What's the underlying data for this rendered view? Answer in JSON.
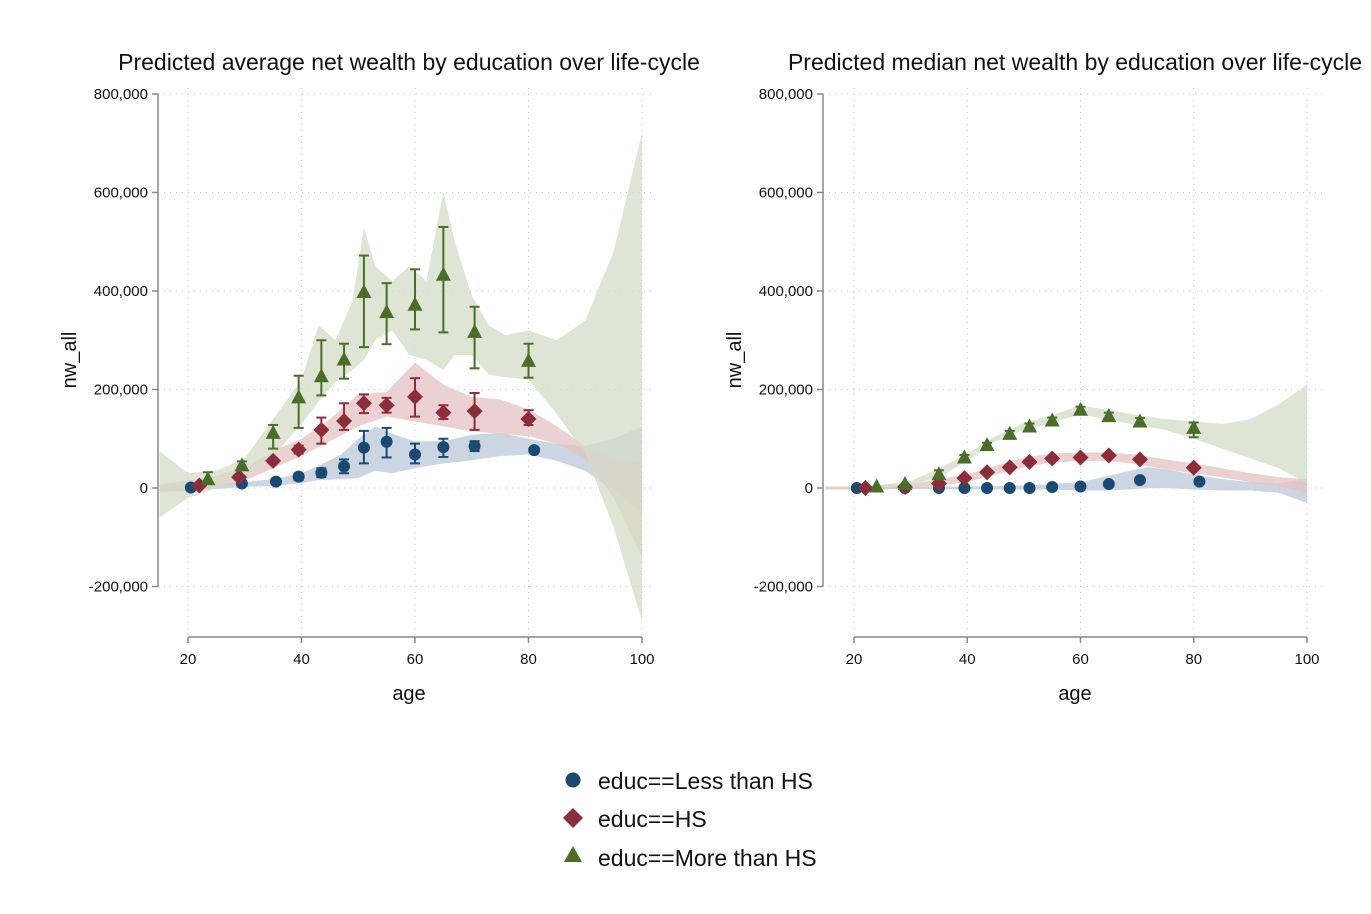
{
  "chart_data": [
    {
      "type": "scatter",
      "title": "Predicted average net wealth by education over life-cycle",
      "xlabel": "age",
      "ylabel": "nw_all",
      "xlim": [
        15,
        100
      ],
      "ylim": [
        -310000,
        800000
      ],
      "xticks": [
        20,
        40,
        60,
        80,
        100
      ],
      "xtick_labels": [
        "20",
        "40",
        "60",
        "80",
        "100"
      ],
      "yticks": [
        -200000,
        0,
        200000,
        400000,
        600000,
        800000
      ],
      "ytick_labels": [
        "-200,000",
        "0",
        "200,000",
        "400,000",
        "600,000",
        "800,000"
      ],
      "grid": true,
      "series": [
        {
          "name": "educ==Less than HS",
          "marker": "circle",
          "color": "#1a4a72",
          "band_color": "#b9c8d8",
          "points": [
            {
              "x": 20.5,
              "y": 1000,
              "lo": 1000,
              "hi": 1000
            },
            {
              "x": 29.5,
              "y": 9000,
              "lo": 9000,
              "hi": 9000
            },
            {
              "x": 35.5,
              "y": 13000,
              "lo": 13000,
              "hi": 13000
            },
            {
              "x": 39.5,
              "y": 23000,
              "lo": 16000,
              "hi": 29000
            },
            {
              "x": 43.5,
              "y": 31000,
              "lo": 22000,
              "hi": 40000
            },
            {
              "x": 47.5,
              "y": 44000,
              "lo": 30000,
              "hi": 58000
            },
            {
              "x": 51,
              "y": 82000,
              "lo": 50000,
              "hi": 116000
            },
            {
              "x": 55,
              "y": 94000,
              "lo": 62000,
              "hi": 122000
            },
            {
              "x": 60,
              "y": 68000,
              "lo": 50000,
              "hi": 90000
            },
            {
              "x": 65,
              "y": 83000,
              "lo": 63000,
              "hi": 100000
            },
            {
              "x": 70.5,
              "y": 85000,
              "lo": 75000,
              "hi": 95000
            },
            {
              "x": 81,
              "y": 77000,
              "lo": 72000,
              "hi": 82000
            }
          ],
          "band_x": [
            15,
            20,
            25,
            30,
            35,
            40,
            43,
            47,
            50,
            53,
            56,
            60,
            65,
            70,
            75,
            80,
            85,
            90,
            95,
            100
          ],
          "band_lo": [
            -9000,
            -5000,
            -2000,
            2000,
            4000,
            10000,
            16000,
            18000,
            20000,
            35000,
            30000,
            40000,
            50000,
            56000,
            65000,
            68000,
            55000,
            35000,
            -5000,
            -50000
          ],
          "band_hi": [
            6000,
            8000,
            8000,
            12000,
            18000,
            30000,
            45000,
            68000,
            100000,
            125000,
            110000,
            95000,
            95000,
            108000,
            112000,
            100000,
            90000,
            85000,
            100000,
            125000
          ]
        },
        {
          "name": "educ==HS",
          "marker": "diamond",
          "color": "#8b2d3a",
          "band_color": "#e5c1c4",
          "points": [
            {
              "x": 22,
              "y": 5000,
              "lo": 5000,
              "hi": 5000
            },
            {
              "x": 29,
              "y": 22000,
              "lo": 18000,
              "hi": 26000
            },
            {
              "x": 35,
              "y": 55000,
              "lo": 50000,
              "hi": 60000
            },
            {
              "x": 39.5,
              "y": 78000,
              "lo": 70000,
              "hi": 86000
            },
            {
              "x": 43.5,
              "y": 118000,
              "lo": 90000,
              "hi": 143000
            },
            {
              "x": 47.5,
              "y": 136000,
              "lo": 118000,
              "hi": 172000
            },
            {
              "x": 51,
              "y": 172000,
              "lo": 152000,
              "hi": 190000
            },
            {
              "x": 55,
              "y": 168000,
              "lo": 153000,
              "hi": 183000
            },
            {
              "x": 60,
              "y": 185000,
              "lo": 145000,
              "hi": 223000
            },
            {
              "x": 65,
              "y": 153000,
              "lo": 140000,
              "hi": 168000
            },
            {
              "x": 70.5,
              "y": 156000,
              "lo": 118000,
              "hi": 193000
            },
            {
              "x": 80,
              "y": 140000,
              "lo": 128000,
              "hi": 158000
            }
          ],
          "band_x": [
            15,
            20,
            25,
            30,
            35,
            40,
            45,
            50,
            55,
            60,
            65,
            70,
            75,
            80,
            85,
            90,
            95,
            100
          ],
          "band_lo": [
            -5000,
            -5000,
            0,
            15000,
            40000,
            65000,
            95000,
            125000,
            145000,
            135000,
            125000,
            115000,
            110000,
            105000,
            90000,
            60000,
            -20000,
            -140000
          ],
          "band_hi": [
            8000,
            15000,
            25000,
            40000,
            75000,
            100000,
            140000,
            190000,
            195000,
            255000,
            210000,
            185000,
            180000,
            160000,
            125000,
            85000,
            60000,
            50000
          ]
        },
        {
          "name": "educ==More than HS",
          "marker": "triangle",
          "color": "#4a6e2a",
          "band_color": "#d3dcc7",
          "points": [
            {
              "x": 23.5,
              "y": 18000,
              "lo": 8000,
              "hi": 32000
            },
            {
              "x": 29.5,
              "y": 46000,
              "lo": 38000,
              "hi": 54000
            },
            {
              "x": 35,
              "y": 112000,
              "lo": 80000,
              "hi": 128000
            },
            {
              "x": 39.5,
              "y": 184000,
              "lo": 122000,
              "hi": 228000
            },
            {
              "x": 43.5,
              "y": 227000,
              "lo": 188000,
              "hi": 300000
            },
            {
              "x": 47.5,
              "y": 261000,
              "lo": 222000,
              "hi": 293000
            },
            {
              "x": 51,
              "y": 398000,
              "lo": 286000,
              "hi": 472000
            },
            {
              "x": 55,
              "y": 357000,
              "lo": 292000,
              "hi": 416000
            },
            {
              "x": 60,
              "y": 372000,
              "lo": 322000,
              "hi": 444000
            },
            {
              "x": 65,
              "y": 433000,
              "lo": 316000,
              "hi": 530000
            },
            {
              "x": 70.5,
              "y": 317000,
              "lo": 243000,
              "hi": 368000
            },
            {
              "x": 80,
              "y": 258000,
              "lo": 224000,
              "hi": 293000
            }
          ],
          "band_x": [
            15,
            20,
            25,
            30,
            35,
            40,
            43,
            46,
            49,
            51,
            53,
            56,
            59,
            62,
            65,
            67,
            70,
            73,
            76,
            80,
            85,
            90,
            95,
            100
          ],
          "band_lo": [
            -60000,
            -20000,
            0,
            20000,
            65000,
            130000,
            175000,
            215000,
            240000,
            260000,
            300000,
            320000,
            270000,
            260000,
            240000,
            270000,
            270000,
            230000,
            225000,
            220000,
            150000,
            70000,
            -80000,
            -270000
          ],
          "band_hi": [
            75000,
            30000,
            35000,
            60000,
            140000,
            220000,
            330000,
            300000,
            380000,
            530000,
            450000,
            420000,
            450000,
            420000,
            600000,
            500000,
            390000,
            330000,
            310000,
            320000,
            300000,
            340000,
            480000,
            720000
          ]
        }
      ]
    },
    {
      "type": "scatter",
      "title": "Predicted median net wealth by education over life-cycle",
      "xlabel": "age",
      "ylabel": "nw_all",
      "xlim": [
        15,
        100
      ],
      "ylim": [
        -310000,
        800000
      ],
      "xticks": [
        20,
        40,
        60,
        80,
        100
      ],
      "xtick_labels": [
        "20",
        "40",
        "60",
        "80",
        "100"
      ],
      "yticks": [
        -200000,
        0,
        200000,
        400000,
        600000,
        800000
      ],
      "ytick_labels": [
        "-200,000",
        "0",
        "200,000",
        "400,000",
        "600,000",
        "800,000"
      ],
      "grid": true,
      "series": [
        {
          "name": "educ==Less than HS",
          "marker": "circle",
          "color": "#1a4a72",
          "band_color": "#b9c8d8",
          "points": [
            {
              "x": 20.5,
              "y": 0,
              "lo": 0,
              "hi": 0
            },
            {
              "x": 29,
              "y": 0,
              "lo": 0,
              "hi": 0
            },
            {
              "x": 35,
              "y": 0,
              "lo": 0,
              "hi": 0
            },
            {
              "x": 39.5,
              "y": 0,
              "lo": 0,
              "hi": 0
            },
            {
              "x": 43.5,
              "y": 0,
              "lo": 0,
              "hi": 0
            },
            {
              "x": 47.5,
              "y": 0,
              "lo": 0,
              "hi": 0
            },
            {
              "x": 51,
              "y": 0,
              "lo": 0,
              "hi": 0
            },
            {
              "x": 55,
              "y": 2000,
              "lo": 2000,
              "hi": 2000
            },
            {
              "x": 60,
              "y": 3000,
              "lo": 3000,
              "hi": 3000
            },
            {
              "x": 65,
              "y": 8000,
              "lo": 8000,
              "hi": 8000
            },
            {
              "x": 70.5,
              "y": 16000,
              "lo": 16000,
              "hi": 16000
            },
            {
              "x": 81,
              "y": 13000,
              "lo": 13000,
              "hi": 13000
            }
          ],
          "band_x": [
            15,
            20,
            30,
            40,
            50,
            55,
            60,
            65,
            70,
            72,
            75,
            80,
            85,
            90,
            95,
            100
          ],
          "band_lo": [
            -3000,
            -3000,
            -2000,
            -3000,
            -3000,
            -3000,
            -5000,
            -5000,
            -2000,
            0,
            0,
            -3000,
            -5000,
            -5000,
            -10000,
            -30000
          ],
          "band_hi": [
            3000,
            3000,
            2000,
            3000,
            5000,
            8000,
            12000,
            25000,
            38000,
            42000,
            38000,
            28000,
            18000,
            12000,
            10000,
            18000
          ]
        },
        {
          "name": "educ==HS",
          "marker": "diamond",
          "color": "#8b2d3a",
          "band_color": "#e5c1c4",
          "points": [
            {
              "x": 22,
              "y": 0,
              "lo": 0,
              "hi": 0
            },
            {
              "x": 29,
              "y": 2000,
              "lo": 2000,
              "hi": 2000
            },
            {
              "x": 35,
              "y": 9000,
              "lo": 9000,
              "hi": 9000
            },
            {
              "x": 39.5,
              "y": 20000,
              "lo": 20000,
              "hi": 20000
            },
            {
              "x": 43.5,
              "y": 32000,
              "lo": 32000,
              "hi": 32000
            },
            {
              "x": 47.5,
              "y": 42000,
              "lo": 42000,
              "hi": 42000
            },
            {
              "x": 51,
              "y": 53000,
              "lo": 53000,
              "hi": 53000
            },
            {
              "x": 55,
              "y": 60000,
              "lo": 60000,
              "hi": 60000
            },
            {
              "x": 60,
              "y": 62000,
              "lo": 62000,
              "hi": 62000
            },
            {
              "x": 65,
              "y": 66000,
              "lo": 66000,
              "hi": 66000
            },
            {
              "x": 70.5,
              "y": 58000,
              "lo": 58000,
              "hi": 58000
            },
            {
              "x": 80,
              "y": 41000,
              "lo": 41000,
              "hi": 41000
            }
          ],
          "band_x": [
            15,
            20,
            30,
            40,
            50,
            55,
            60,
            65,
            70,
            75,
            80,
            85,
            90,
            95,
            100
          ],
          "band_lo": [
            -3000,
            -2000,
            -2000,
            12000,
            42000,
            52000,
            55000,
            55000,
            48000,
            38000,
            30000,
            22000,
            12000,
            3000,
            -10000
          ],
          "band_hi": [
            3000,
            3000,
            8000,
            28000,
            62000,
            70000,
            72000,
            72000,
            68000,
            58000,
            50000,
            40000,
            30000,
            22000,
            18000
          ]
        },
        {
          "name": "educ==More than HS",
          "marker": "triangle",
          "color": "#4a6e2a",
          "band_color": "#d3dcc7",
          "points": [
            {
              "x": 24,
              "y": 3000,
              "lo": 3000,
              "hi": 3000
            },
            {
              "x": 29,
              "y": 8000,
              "lo": 8000,
              "hi": 8000
            },
            {
              "x": 35,
              "y": 28000,
              "lo": 20000,
              "hi": 36000
            },
            {
              "x": 39.5,
              "y": 62000,
              "lo": 57000,
              "hi": 67000
            },
            {
              "x": 43.5,
              "y": 87000,
              "lo": 82000,
              "hi": 92000
            },
            {
              "x": 47.5,
              "y": 110000,
              "lo": 104000,
              "hi": 116000
            },
            {
              "x": 51,
              "y": 125000,
              "lo": 119000,
              "hi": 131000
            },
            {
              "x": 55,
              "y": 137000,
              "lo": 131000,
              "hi": 143000
            },
            {
              "x": 60,
              "y": 159000,
              "lo": 153000,
              "hi": 165000
            },
            {
              "x": 65,
              "y": 146000,
              "lo": 138000,
              "hi": 153000
            },
            {
              "x": 70.5,
              "y": 135000,
              "lo": 130000,
              "hi": 142000
            },
            {
              "x": 80,
              "y": 122000,
              "lo": 103000,
              "hi": 133000
            }
          ],
          "band_x": [
            15,
            20,
            25,
            30,
            35,
            40,
            45,
            50,
            55,
            60,
            65,
            70,
            75,
            80,
            85,
            90,
            95,
            100
          ],
          "band_lo": [
            -2000,
            0,
            2000,
            6000,
            22000,
            55000,
            95000,
            118000,
            132000,
            150000,
            138000,
            128000,
            118000,
            100000,
            80000,
            60000,
            40000,
            10000
          ],
          "band_hi": [
            2000,
            3000,
            7000,
            14000,
            40000,
            70000,
            105000,
            132000,
            148000,
            168000,
            158000,
            148000,
            140000,
            135000,
            130000,
            140000,
            170000,
            210000
          ]
        }
      ]
    }
  ],
  "legend": {
    "placement": "bottom-center",
    "items": [
      {
        "label": "educ==Less than HS",
        "marker": "circle",
        "color": "#1a4a72"
      },
      {
        "label": "educ==HS",
        "marker": "diamond",
        "color": "#8b2d3a"
      },
      {
        "label": "educ==More than HS",
        "marker": "triangle",
        "color": "#4a6e2a"
      }
    ]
  }
}
